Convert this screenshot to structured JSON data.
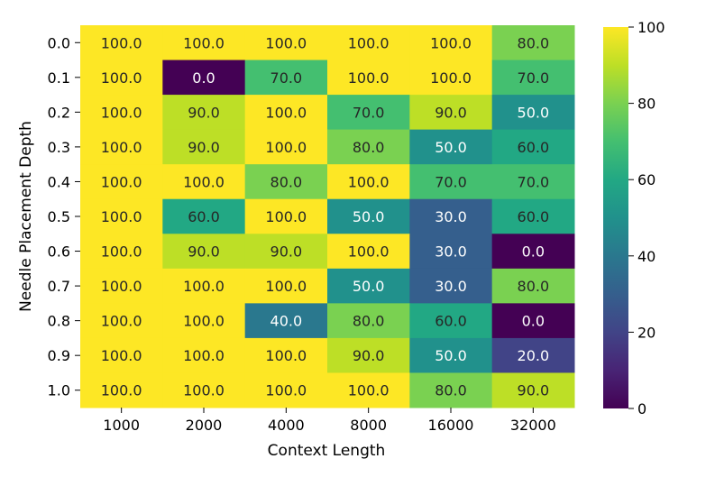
{
  "chart_data": {
    "type": "heatmap",
    "title": "",
    "xlabel": "Context Length",
    "ylabel": "Needle Placement Depth",
    "x_categories": [
      "1000",
      "2000",
      "4000",
      "8000",
      "16000",
      "32000"
    ],
    "y_categories": [
      "0.0",
      "0.1",
      "0.2",
      "0.3",
      "0.4",
      "0.5",
      "0.6",
      "0.7",
      "0.8",
      "0.9",
      "1.0"
    ],
    "values": [
      [
        100,
        100,
        100,
        100,
        100,
        80
      ],
      [
        100,
        0,
        70,
        100,
        100,
        70
      ],
      [
        100,
        90,
        100,
        70,
        90,
        50
      ],
      [
        100,
        90,
        100,
        80,
        50,
        60
      ],
      [
        100,
        100,
        80,
        100,
        70,
        70
      ],
      [
        100,
        60,
        100,
        50,
        30,
        60
      ],
      [
        100,
        90,
        90,
        100,
        30,
        0
      ],
      [
        100,
        100,
        100,
        50,
        30,
        80
      ],
      [
        100,
        100,
        40,
        80,
        60,
        0
      ],
      [
        100,
        100,
        100,
        90,
        50,
        20
      ],
      [
        100,
        100,
        100,
        100,
        80,
        90
      ]
    ],
    "value_format": "0.0",
    "colorscale": "viridis",
    "colorbar": {
      "range": [
        0,
        100
      ],
      "ticks": [
        0,
        20,
        40,
        60,
        80,
        100
      ]
    },
    "grid": false
  }
}
